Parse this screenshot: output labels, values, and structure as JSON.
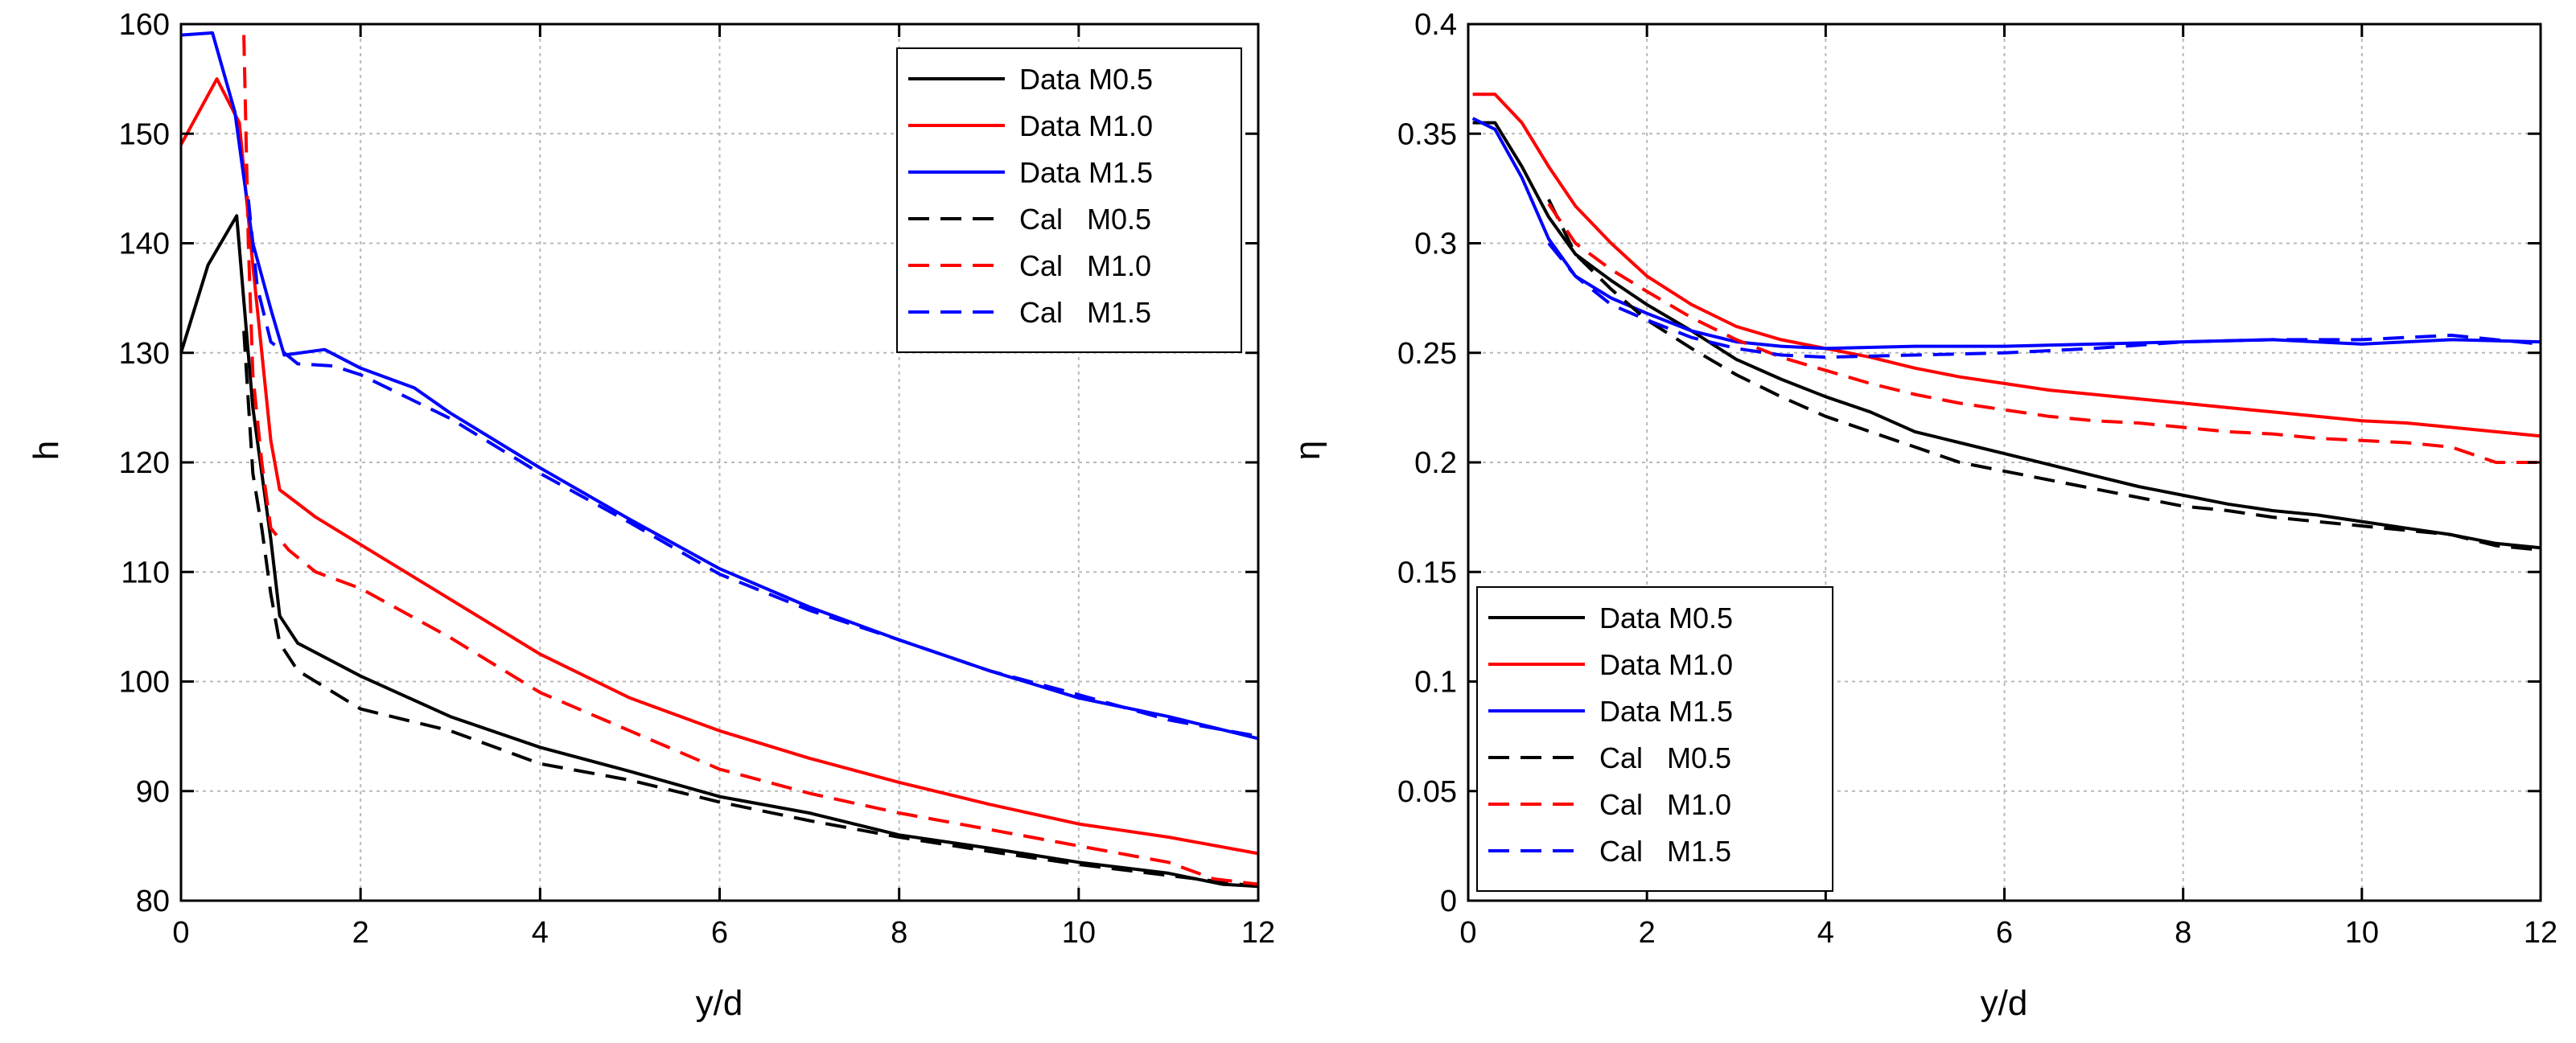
{
  "chart_data": [
    {
      "type": "line",
      "xlabel": "y/d",
      "ylabel": "h",
      "xlim": [
        0,
        12
      ],
      "ylim": [
        80,
        160
      ],
      "xticks": [
        "0",
        "2",
        "4",
        "6",
        "8",
        "10",
        "12"
      ],
      "yticks": [
        "80",
        "90",
        "100",
        "110",
        "120",
        "130",
        "140",
        "150",
        "160"
      ],
      "grid": true,
      "legend_position": "top-right",
      "series": [
        {
          "name": "Data M0.5",
          "color": "#000000",
          "dash": "solid",
          "x": [
            0,
            0.3,
            0.62,
            0.8,
            1.0,
            1.1,
            1.3,
            2,
            3,
            4,
            5,
            6,
            7,
            8,
            9,
            10,
            11,
            11.6,
            12
          ],
          "y": [
            130,
            138,
            142.5,
            125,
            113,
            106,
            103.5,
            100.5,
            96.8,
            94,
            91.8,
            89.5,
            88,
            86,
            84.8,
            83.5,
            82.5,
            81.5,
            81.3
          ]
        },
        {
          "name": "Data M1.0",
          "color": "#ff0000",
          "dash": "solid",
          "x": [
            0,
            0.4,
            0.65,
            0.8,
            1.0,
            1.1,
            1.5,
            2,
            3,
            4,
            5,
            6,
            7,
            8,
            9,
            10,
            11,
            12
          ],
          "y": [
            149,
            155,
            151,
            138,
            122,
            117.5,
            115,
            112.5,
            107.5,
            102.5,
            98.5,
            95.5,
            93,
            90.8,
            88.8,
            87,
            85.8,
            84.3
          ]
        },
        {
          "name": "Data M1.5",
          "color": "#0000ff",
          "dash": "solid",
          "x": [
            0,
            0.35,
            0.6,
            0.8,
            1.0,
            1.15,
            1.6,
            2,
            2.6,
            3,
            4,
            5,
            6,
            7,
            8,
            9,
            10,
            11,
            12
          ],
          "y": [
            159,
            159.2,
            152,
            140,
            134,
            129.8,
            130.3,
            128.6,
            126.8,
            124.5,
            119.5,
            114.8,
            110.3,
            106.8,
            103.8,
            101,
            98.5,
            96.8,
            94.8
          ]
        },
        {
          "name": "Cal   M0.5",
          "color": "#000000",
          "dash": "dashed",
          "x": [
            0.7,
            0.8,
            0.9,
            1.0,
            1.1,
            1.3,
            2,
            3,
            4,
            5,
            6,
            7,
            8,
            9,
            10,
            11,
            12
          ],
          "y": [
            132,
            119,
            114,
            108,
            103.5,
            101,
            97.5,
            95.5,
            92.5,
            91,
            89,
            87.3,
            85.8,
            84.5,
            83.3,
            82.3,
            81.3
          ]
        },
        {
          "name": "Cal   M1.0",
          "color": "#ff0000",
          "dash": "dashed",
          "x": [
            0.7,
            0.75,
            0.8,
            0.9,
            1.0,
            1.2,
            1.5,
            2,
            3,
            4,
            5,
            6,
            7,
            8,
            9,
            10,
            11,
            11.5,
            12
          ],
          "y": [
            159,
            140,
            128,
            120,
            114,
            112,
            110,
            108.5,
            104,
            99,
            95.5,
            92,
            89.8,
            88,
            86.5,
            85,
            83.5,
            82,
            81.5
          ]
        },
        {
          "name": "Cal   M1.5",
          "color": "#0000ff",
          "dash": "dashed",
          "x": [
            0.75,
            0.85,
            1.0,
            1.3,
            1.7,
            2,
            3,
            4,
            5,
            6,
            7,
            8,
            9,
            10,
            11,
            12
          ],
          "y": [
            144,
            136,
            131,
            129,
            128.8,
            128,
            124,
            119,
            114.5,
            109.8,
            106.5,
            103.8,
            101,
            98.8,
            96.5,
            95
          ]
        }
      ]
    },
    {
      "type": "line",
      "xlabel": "y/d",
      "ylabel": "η",
      "xlim": [
        0,
        12
      ],
      "ylim": [
        0,
        0.4
      ],
      "xticks": [
        "0",
        "2",
        "4",
        "6",
        "8",
        "10",
        "12"
      ],
      "yticks": [
        "0",
        "0.05",
        "0.1",
        "0.15",
        "0.2",
        "0.25",
        "0.3",
        "0.35",
        "0.4"
      ],
      "grid": true,
      "legend_position": "bottom-left",
      "series": [
        {
          "name": "Data M0.5",
          "color": "#000000",
          "dash": "solid",
          "x": [
            0.05,
            0.3,
            0.6,
            0.9,
            1.2,
            1.6,
            2,
            2.5,
            3,
            3.5,
            4,
            4.5,
            5,
            5.5,
            6,
            6.5,
            7,
            7.5,
            8,
            8.5,
            9,
            9.5,
            10,
            10.5,
            11,
            11.5,
            12
          ],
          "y": [
            0.355,
            0.355,
            0.335,
            0.312,
            0.295,
            0.283,
            0.272,
            0.26,
            0.247,
            0.238,
            0.23,
            0.223,
            0.214,
            0.209,
            0.204,
            0.199,
            0.194,
            0.189,
            0.185,
            0.181,
            0.178,
            0.176,
            0.173,
            0.17,
            0.167,
            0.163,
            0.161
          ]
        },
        {
          "name": "Data M1.0",
          "color": "#ff0000",
          "dash": "solid",
          "x": [
            0.05,
            0.3,
            0.6,
            0.9,
            1.2,
            1.6,
            2,
            2.5,
            3,
            3.5,
            4,
            4.5,
            5,
            5.5,
            6,
            6.5,
            7,
            7.5,
            8,
            8.5,
            9,
            9.5,
            10,
            10.5,
            11,
            11.5,
            12
          ],
          "y": [
            0.368,
            0.368,
            0.355,
            0.335,
            0.317,
            0.3,
            0.285,
            0.272,
            0.262,
            0.256,
            0.252,
            0.248,
            0.243,
            0.239,
            0.236,
            0.233,
            0.231,
            0.229,
            0.227,
            0.225,
            0.223,
            0.221,
            0.219,
            0.218,
            0.216,
            0.214,
            0.212
          ]
        },
        {
          "name": "Data M1.5",
          "color": "#0000ff",
          "dash": "solid",
          "x": [
            0.05,
            0.3,
            0.6,
            0.9,
            1.2,
            1.6,
            2,
            2.5,
            3,
            3.5,
            4,
            5,
            6,
            7,
            8,
            9,
            10,
            11,
            12
          ],
          "y": [
            0.357,
            0.352,
            0.33,
            0.302,
            0.285,
            0.275,
            0.268,
            0.26,
            0.255,
            0.253,
            0.252,
            0.253,
            0.253,
            0.254,
            0.255,
            0.256,
            0.254,
            0.256,
            0.255
          ]
        },
        {
          "name": "Cal   M0.5",
          "color": "#000000",
          "dash": "dashed",
          "x": [
            0.9,
            1.2,
            1.6,
            2,
            2.5,
            3,
            3.5,
            4,
            4.5,
            5,
            5.5,
            6,
            6.5,
            7,
            7.5,
            8,
            8.5,
            9,
            9.5,
            10,
            10.5,
            11,
            11.5,
            12
          ],
          "y": [
            0.32,
            0.295,
            0.279,
            0.265,
            0.252,
            0.24,
            0.23,
            0.221,
            0.214,
            0.207,
            0.2,
            0.196,
            0.192,
            0.188,
            0.184,
            0.18,
            0.178,
            0.175,
            0.173,
            0.171,
            0.169,
            0.167,
            0.162,
            0.16
          ]
        },
        {
          "name": "Cal   M1.0",
          "color": "#ff0000",
          "dash": "dashed",
          "x": [
            0.9,
            1.2,
            1.6,
            2,
            2.5,
            3,
            3.5,
            4,
            4.5,
            5,
            5.5,
            6,
            6.5,
            7,
            7.5,
            8,
            8.5,
            9,
            9.5,
            10,
            10.5,
            11,
            11.5,
            12
          ],
          "y": [
            0.318,
            0.3,
            0.288,
            0.278,
            0.266,
            0.256,
            0.248,
            0.242,
            0.236,
            0.231,
            0.227,
            0.224,
            0.221,
            0.219,
            0.218,
            0.216,
            0.214,
            0.213,
            0.211,
            0.21,
            0.209,
            0.207,
            0.2,
            0.2
          ]
        },
        {
          "name": "Cal   M1.5",
          "color": "#0000ff",
          "dash": "dashed",
          "x": [
            0.9,
            1.2,
            1.6,
            2,
            2.5,
            3,
            3.5,
            4,
            5,
            6,
            7,
            8,
            9,
            10,
            11,
            12
          ],
          "y": [
            0.3,
            0.285,
            0.272,
            0.265,
            0.257,
            0.252,
            0.249,
            0.248,
            0.249,
            0.25,
            0.252,
            0.255,
            0.256,
            0.256,
            0.258,
            0.254
          ]
        }
      ]
    }
  ]
}
